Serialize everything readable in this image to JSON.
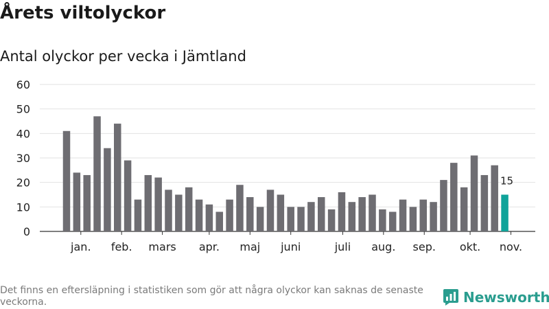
{
  "colors": {
    "bar": "#6e6d72",
    "highlight": "#0fa39a",
    "grid": "#e2e2e2",
    "brand": "#2a9d8f"
  },
  "chart_data": {
    "type": "bar",
    "title": "Årets viltolyckor",
    "subtitle": "Antal olyckor per vecka i Jämtland",
    "xlabel": "",
    "ylabel": "",
    "ylim": [
      0,
      60
    ],
    "yticks": [
      0,
      10,
      20,
      30,
      40,
      50,
      60
    ],
    "grid": true,
    "values": [
      41,
      24,
      23,
      47,
      34,
      44,
      29,
      13,
      23,
      22,
      17,
      15,
      18,
      13,
      11,
      8,
      13,
      19,
      14,
      10,
      17,
      15,
      10,
      10,
      12,
      14,
      9,
      16,
      12,
      14,
      15,
      9,
      8,
      13,
      10,
      13,
      12,
      21,
      28,
      18,
      31,
      23,
      27,
      15
    ],
    "highlight_index": 43,
    "data_labels": [
      {
        "index": 43,
        "text": "15"
      }
    ],
    "months": [
      {
        "label": "jan.",
        "week": 1.4
      },
      {
        "label": "feb.",
        "week": 5.4
      },
      {
        "label": "mars",
        "week": 9.4
      },
      {
        "label": "apr.",
        "week": 14
      },
      {
        "label": "maj",
        "week": 18
      },
      {
        "label": "juni",
        "week": 22
      },
      {
        "label": "juli",
        "week": 27.1
      },
      {
        "label": "aug.",
        "week": 31.1
      },
      {
        "label": "sep.",
        "week": 35.1
      },
      {
        "label": "okt.",
        "week": 39.6
      },
      {
        "label": "nov.",
        "week": 43.6
      }
    ]
  },
  "footnote": "Det finns en eftersläpning i statistiken som gör att några olyckor kan saknas de senaste veckorna.",
  "brand": {
    "name": "Newsworthy",
    "icon": "newsworthy-logo-icon"
  }
}
